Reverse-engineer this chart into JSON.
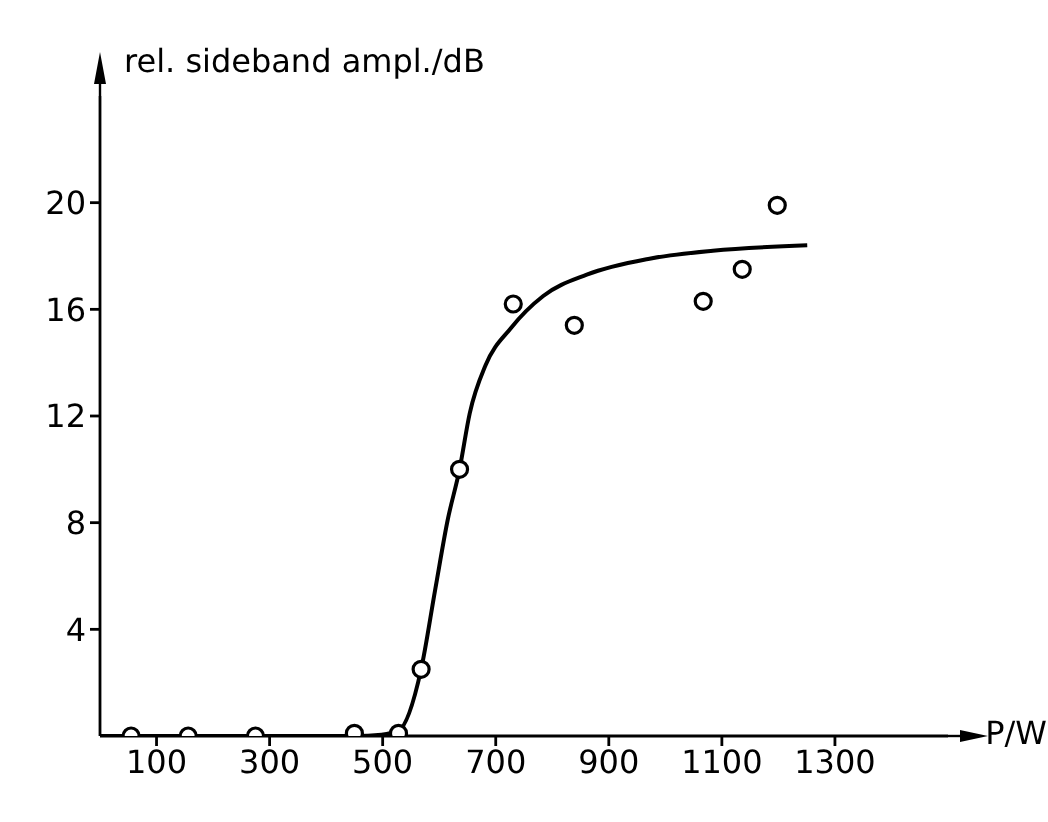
{
  "chart_data": {
    "type": "scatter",
    "xlabel": "P/W",
    "ylabel": "rel. sideband ampl./dB",
    "xlim": [
      0,
      1500
    ],
    "ylim": [
      0,
      24
    ],
    "xticks": [
      100,
      300,
      500,
      700,
      900,
      1100,
      1300
    ],
    "yticks": [
      4,
      8,
      12,
      16,
      20
    ],
    "grid": false,
    "legend": false,
    "series": [
      {
        "color": "#000000",
        "marker": "circle",
        "x": [
          55,
          156,
          275,
          450,
          528,
          568,
          636,
          731,
          839,
          1067,
          1136,
          1198
        ],
        "values": [
          0,
          0,
          0,
          0.1,
          0.1,
          2.5,
          10,
          16.2,
          15.4,
          16.3,
          17.5,
          19.9
        ]
      },
      {
        "type": "line",
        "color": "#000000",
        "marker": "none",
        "line_style": "solid",
        "x": [
          0,
          450,
          498,
          528,
          568,
          593,
          615,
          636,
          654,
          682,
          727,
          784,
          861,
          972,
          1084,
          1251
        ],
        "values": [
          0,
          0,
          0.05,
          0.2,
          2.5,
          5.5,
          8.1,
          10,
          12.1,
          13.9,
          15.3,
          16.5,
          17.3,
          17.9,
          18.2,
          18.4
        ]
      }
    ]
  }
}
